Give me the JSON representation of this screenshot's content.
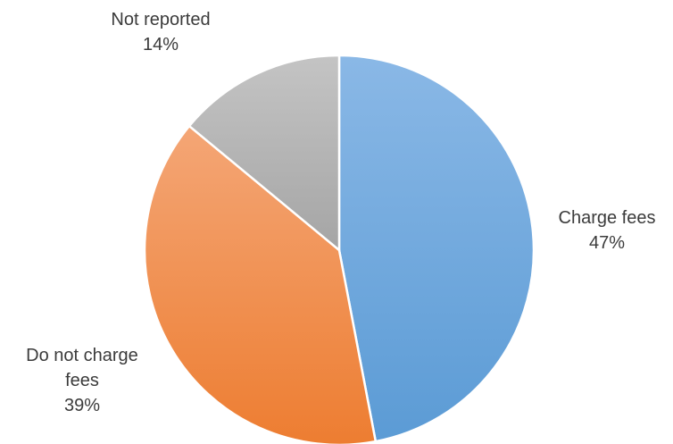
{
  "chart_data": {
    "type": "pie",
    "title": "",
    "slices": [
      {
        "label": "Charge fees",
        "value": 47,
        "percent_label": "47%",
        "color": "#5b9bd5"
      },
      {
        "label": "Do not charge fees",
        "value": 39,
        "percent_label": "39%",
        "color": "#ed7d31"
      },
      {
        "label": "Not reported",
        "value": 14,
        "percent_label": "14%",
        "color": "#a5a5a5"
      }
    ],
    "start_angle": "12 o'clock",
    "direction": "clockwise",
    "legend": "none",
    "data_labels": "outside, category name and percentage"
  },
  "labels": {
    "charge_name": "Charge fees",
    "charge_pct": "47%",
    "nocharge_name_line1": "Do not charge",
    "nocharge_name_line2": "fees",
    "nocharge_pct": "39%",
    "notreported_name": "Not reported",
    "notreported_pct": "14%"
  }
}
